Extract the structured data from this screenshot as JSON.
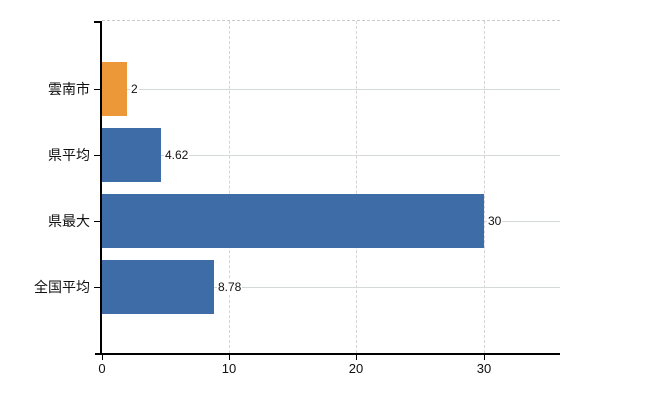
{
  "chart_data": {
    "type": "bar",
    "orientation": "horizontal",
    "title": "",
    "xlabel": "",
    "ylabel": "",
    "categories": [
      "雲南市",
      "県平均",
      "県最大",
      "全国平均"
    ],
    "values": [
      2,
      4.62,
      30,
      8.78
    ],
    "value_labels": [
      "2",
      "4.62",
      "30",
      "8.78"
    ],
    "highlight_category": "雲南市",
    "bar_colors": [
      "#EC9839",
      "#3E6CA7",
      "#3E6CA7",
      "#3E6CA7"
    ],
    "x_ticks": [
      0,
      10,
      20,
      30
    ],
    "x_tick_labels": [
      "0",
      "10",
      "20",
      "30"
    ],
    "xlim": [
      0,
      36
    ],
    "legend": null,
    "grid": {
      "vertical_style": "dashed",
      "horizontal_style": "solid",
      "top_border_style": "dashed",
      "right_border": false
    },
    "colors": {
      "axis": "#000000",
      "grid_h": "#d4dad4",
      "grid_v": "#d6d2d6",
      "top_border": "#cbcbcb",
      "text": "#111111",
      "background": "#ffffff"
    }
  }
}
